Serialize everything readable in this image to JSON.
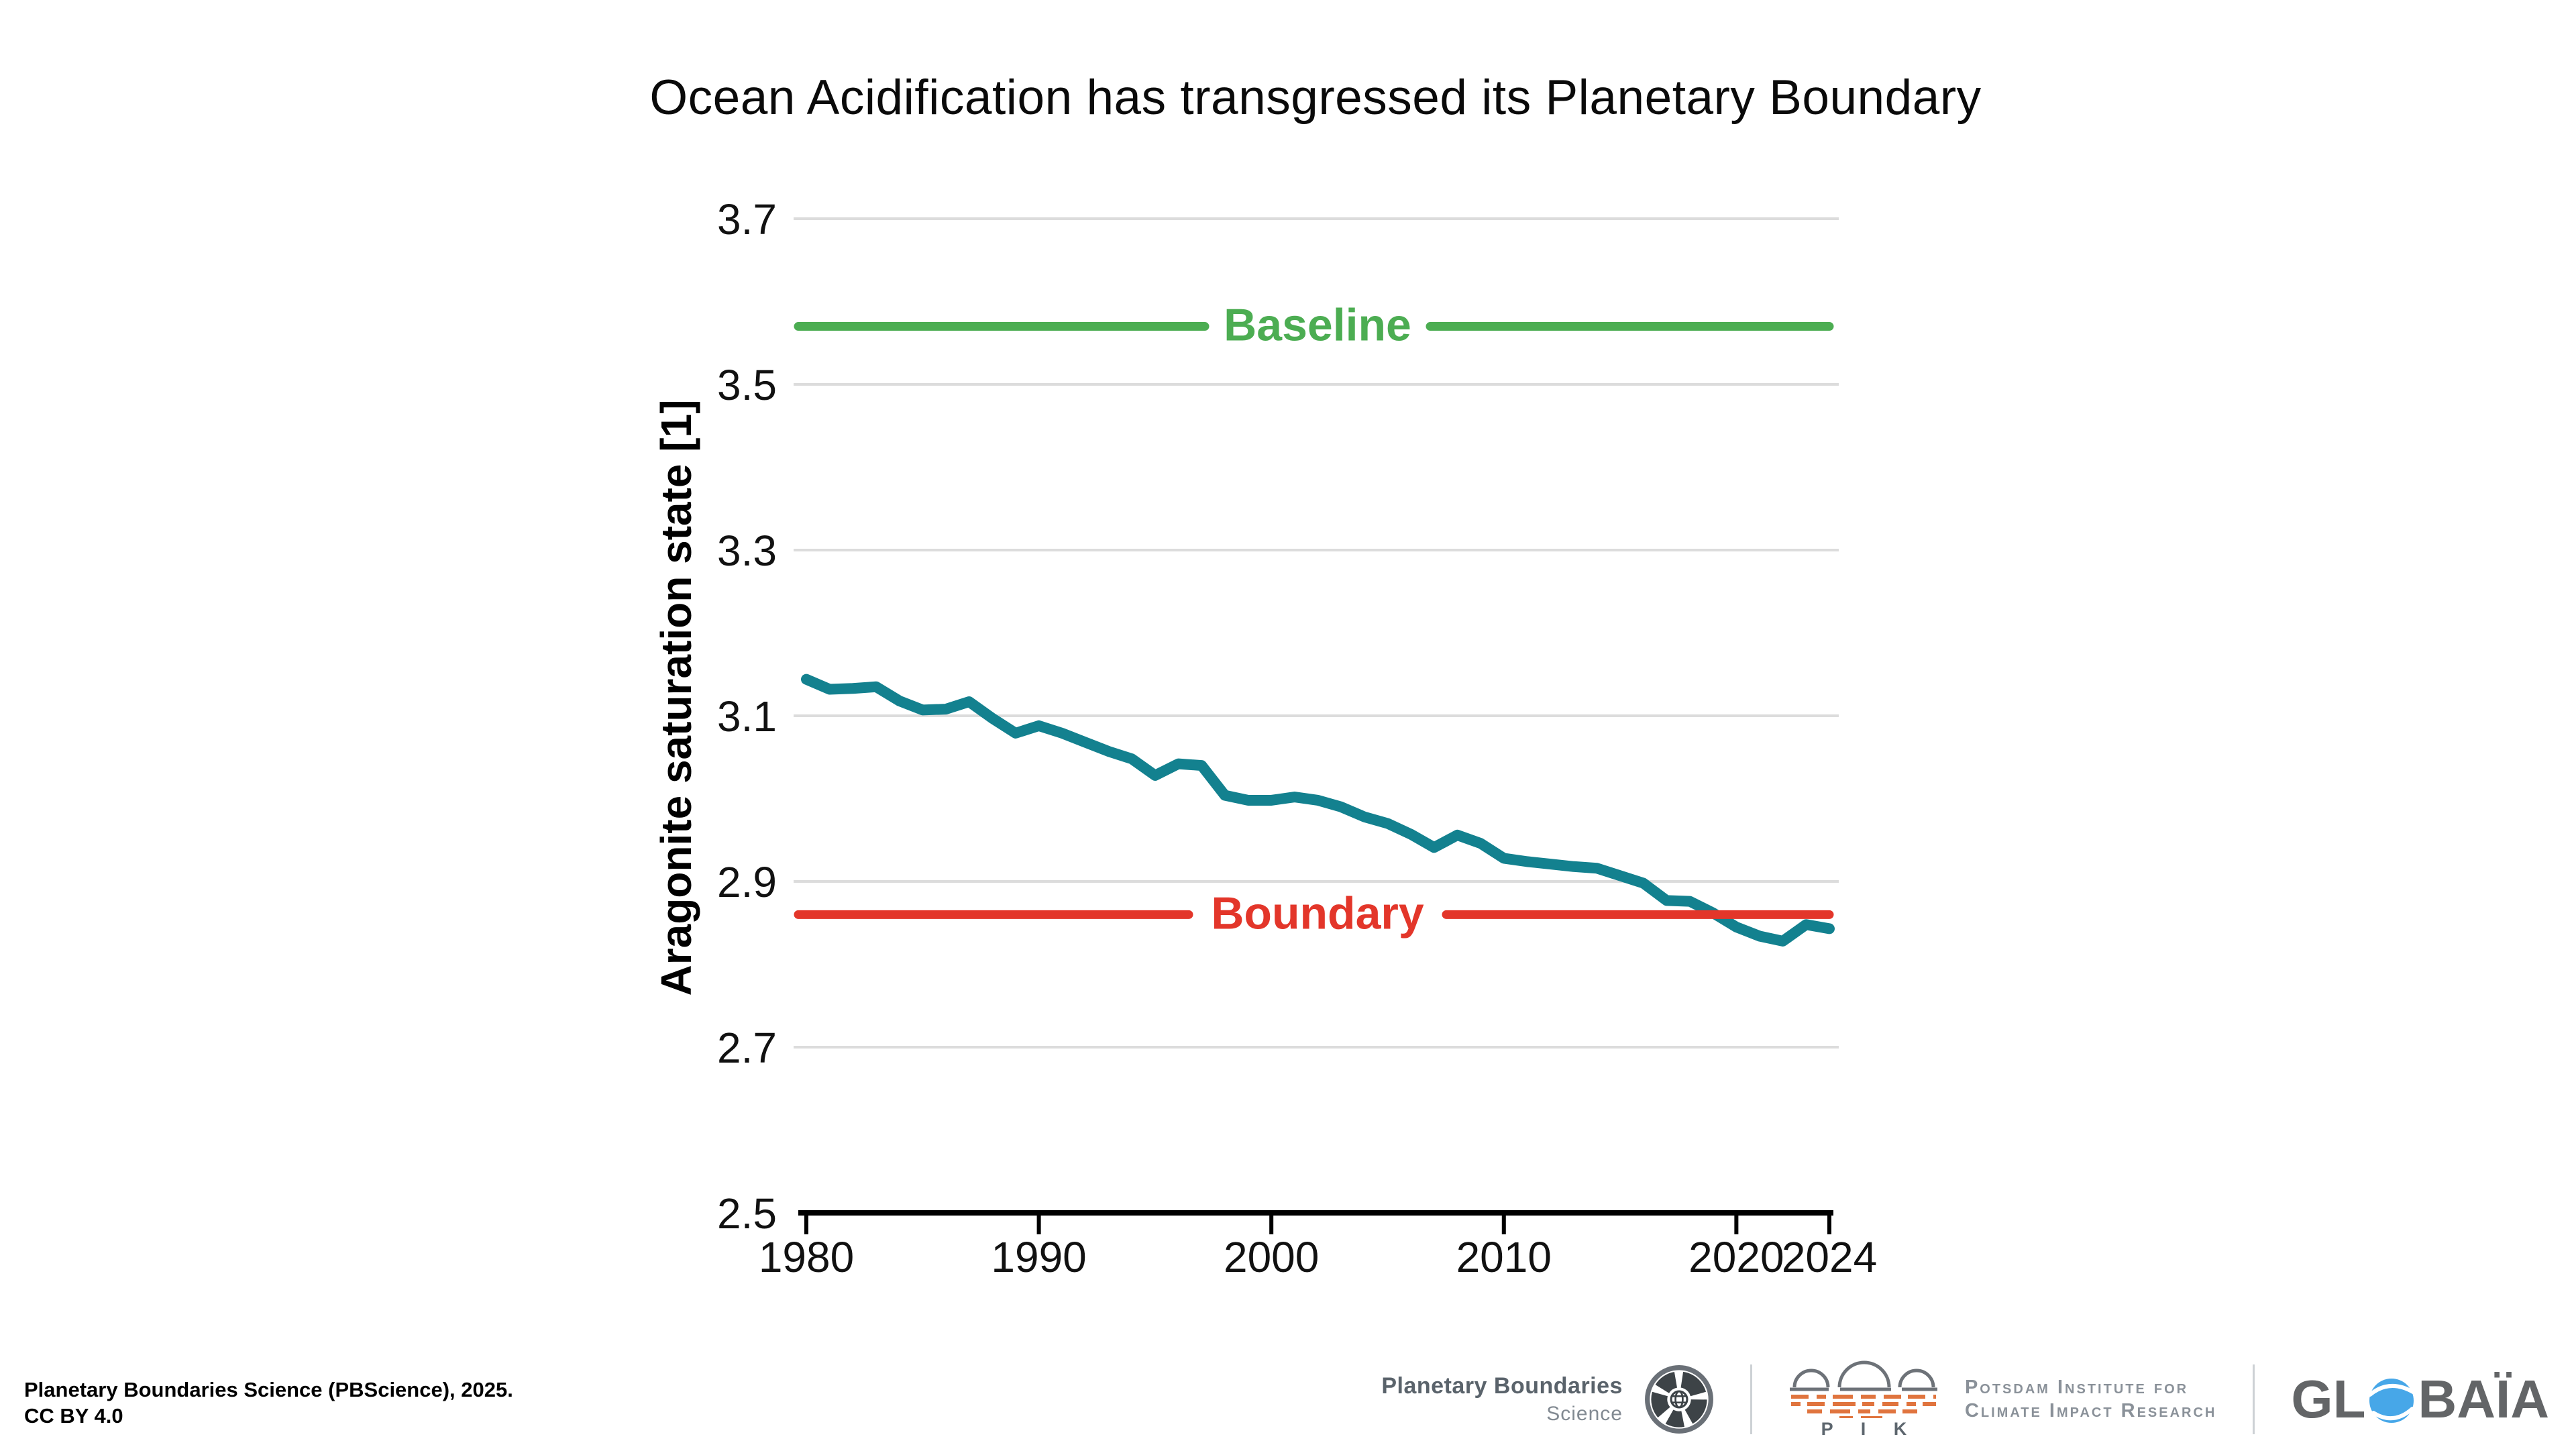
{
  "title": "Ocean Acidification has transgressed its Planetary Boundary",
  "chart_data": {
    "type": "line",
    "x": [
      1980,
      1981,
      1982,
      1983,
      1984,
      1985,
      1986,
      1987,
      1988,
      1989,
      1990,
      1991,
      1992,
      1993,
      1994,
      1995,
      1996,
      1997,
      1998,
      1999,
      2000,
      2001,
      2002,
      2003,
      2004,
      2005,
      2006,
      2007,
      2008,
      2009,
      2010,
      2011,
      2012,
      2013,
      2014,
      2015,
      2016,
      2017,
      2018,
      2019,
      2020,
      2021,
      2022,
      2023,
      2024
    ],
    "series": [
      {
        "name": "Aragonite saturation state",
        "color": "#13818F",
        "values": [
          3.144,
          3.132,
          3.133,
          3.135,
          3.118,
          3.107,
          3.108,
          3.117,
          3.097,
          3.079,
          3.088,
          3.079,
          3.068,
          3.057,
          3.048,
          3.028,
          3.042,
          3.04,
          3.004,
          2.998,
          2.998,
          3.002,
          2.998,
          2.99,
          2.978,
          2.97,
          2.957,
          2.941,
          2.956,
          2.946,
          2.928,
          2.924,
          2.921,
          2.918,
          2.916,
          2.907,
          2.898,
          2.877,
          2.876,
          2.862,
          2.845,
          2.834,
          2.828,
          2.848,
          2.843
        ]
      }
    ],
    "reference_lines": [
      {
        "label": "Baseline",
        "value": 3.57,
        "color": "#4CAD52"
      },
      {
        "label": "Boundary",
        "value": 2.86,
        "color": "#E3362A"
      }
    ],
    "title": "Ocean Acidification has transgressed its Planetary Boundary",
    "xlabel": "",
    "ylabel": "Aragonite saturation state [1]",
    "ylim": [
      2.5,
      3.7
    ],
    "yticks": [
      3.7,
      3.5,
      3.3,
      3.1,
      2.9,
      2.7,
      2.5
    ],
    "xticks": [
      1980,
      1990,
      2000,
      2010,
      2020,
      2024
    ],
    "grid": true,
    "legend_position": "none",
    "grid_color": "#dcdcdc",
    "axis_color": "#000000"
  },
  "footer": {
    "attribution_line1": "Planetary Boundaries Science (PBScience), 2025.",
    "attribution_line2": "CC BY 4.0",
    "logos": {
      "pbscience": {
        "line1": "Planetary Boundaries",
        "line2": "Science"
      },
      "pik": {
        "acronym": "P I K",
        "line1": "Potsdam Institute for",
        "line2": "Climate Impact Research"
      },
      "globaia": {
        "pre": "GL",
        "post": "BAÏA"
      }
    }
  }
}
